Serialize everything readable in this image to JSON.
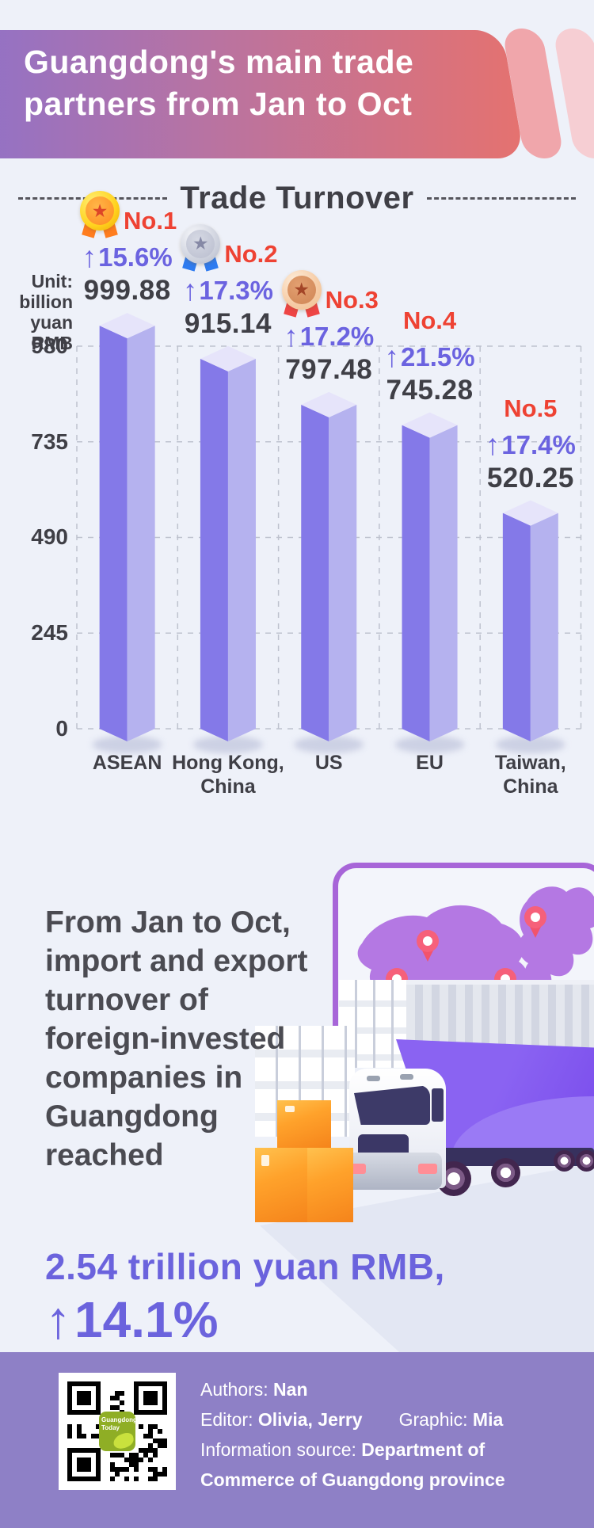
{
  "page": {
    "background": "#eef1f9",
    "footer_background": "#8e80c6"
  },
  "header": {
    "title_line1": "Guangdong's main trade",
    "title_line2": "partners from Jan to Oct",
    "gradient_left": "#8d71cb",
    "gradient_right": "#e5726f",
    "capsule1_color": "#f0a6ab",
    "capsule2_color": "#f6ced3"
  },
  "chart_data": {
    "type": "bar",
    "title": "Trade Turnover",
    "unit_label": "Unit:\nbillion\nyuan\nRMB",
    "categories": [
      "ASEAN",
      "Hong Kong,\nChina",
      "US",
      "EU",
      "Taiwan,\nChina"
    ],
    "values": [
      999.88,
      915.14,
      797.48,
      745.28,
      520.25
    ],
    "value_labels": [
      "999.88",
      "915.14",
      "797.48",
      "745.28",
      "520.25"
    ],
    "growth_arrows": [
      "↑",
      "↑",
      "↑",
      "↑",
      "↑"
    ],
    "growth_pct": [
      "15.6%",
      "17.3%",
      "17.2%",
      "21.5%",
      "17.4%"
    ],
    "ranks": [
      "No.1",
      "No.2",
      "No.3",
      "No.4",
      "No.5"
    ],
    "medals": [
      "gold",
      "silver",
      "bronze",
      null,
      null
    ],
    "yticks": [
      980,
      735,
      490,
      245,
      0
    ],
    "ylim": [
      0,
      1045
    ],
    "grid": true,
    "colors": {
      "bar_left_face": "#8479e8",
      "bar_right_face": "#b5b2ef",
      "bar_top_face": "#e6e4fa",
      "rank_text": "#ee4233",
      "growth_text": "#6b63e0",
      "value_text": "#3f3f46",
      "gridline": "#b9bdca"
    }
  },
  "body_text": {
    "paragraph": "From Jan to Oct, import and export turnover of foreign-invested companies in Guangdong reached",
    "highlight_line1": "2.54 trillion yuan RMB,",
    "highlight_arrow": "↑",
    "highlight_value": "14.1%",
    "highlight_color": "#6b63dd"
  },
  "footer": {
    "authors_label": "Authors:",
    "authors": "Nan",
    "editor_label": "Editor:",
    "editors": "Olivia, Jerry",
    "graphic_label": "Graphic:",
    "graphic": "Mia",
    "source_label": "Information source:",
    "source": "Department of Commerce of Guangdong province",
    "qr_badge_line1": "Guangdong",
    "qr_badge_line2": "Today"
  }
}
